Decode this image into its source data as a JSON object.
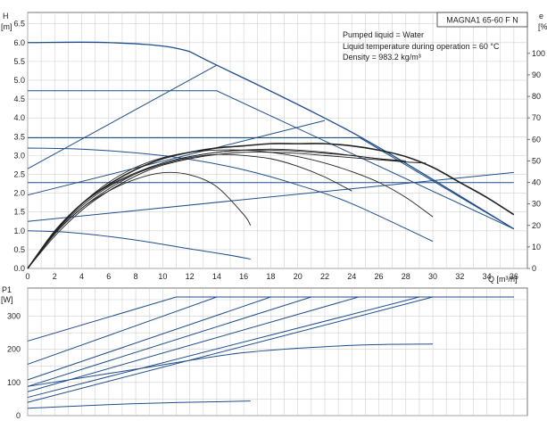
{
  "chart_data": [
    {
      "type": "line",
      "model_label": "MAGNA1 65-60 F N",
      "info_lines": [
        "Pumped liquid = Water",
        "Liquid temperature during operation = 60 °C",
        "Density = 983.2 kg/m³"
      ],
      "x_label": "Q [m³/h]",
      "y_label_top": "H",
      "y_label_bottom": "[m]",
      "y2_label_top": "e",
      "y2_label_bottom": "[%]",
      "xlim": [
        0,
        37
      ],
      "ylim": [
        0,
        6.8
      ],
      "y2lim": [
        0,
        119
      ],
      "x_ticks": [
        "0",
        "2",
        "4",
        "6",
        "8",
        "10",
        "12",
        "14",
        "16",
        "18",
        "20",
        "22",
        "24",
        "26",
        "28",
        "30",
        "32",
        "34",
        "36"
      ],
      "y_ticks": [
        "0.0",
        "0.5",
        "1.0",
        "1.5",
        "2.0",
        "2.5",
        "3.0",
        "3.5",
        "4.0",
        "4.5",
        "5.0",
        "5.5",
        "6.0",
        "6.5"
      ],
      "y2_ticks": [
        "0",
        "10",
        "20",
        "30",
        "40",
        "50",
        "60",
        "70",
        "80",
        "90",
        "100"
      ],
      "grid": true,
      "colors": {
        "curve": "#1f4e8c",
        "efficiency": "#222222"
      },
      "head_series": [
        {
          "x": [
            0,
            6,
            11,
            14,
            24.6,
            36
          ],
          "y": [
            6.0,
            6.0,
            5.85,
            5.4,
            3.5,
            1.05
          ]
        },
        {
          "x": [
            0,
            4,
            8,
            12,
            16,
            20,
            24,
            30
          ],
          "y": [
            3.2,
            3.17,
            3.07,
            2.9,
            2.62,
            2.22,
            1.72,
            0.72
          ]
        },
        {
          "x": [
            0,
            3,
            6,
            9,
            12,
            14.5,
            16.5
          ],
          "y": [
            1.0,
            0.96,
            0.85,
            0.7,
            0.52,
            0.38,
            0.25
          ]
        },
        {
          "x": [
            0,
            14,
            36
          ],
          "y": [
            4.72,
            4.72,
            1.05
          ]
        },
        {
          "x": [
            0,
            24.6,
            36
          ],
          "y": [
            3.47,
            3.47,
            1.05
          ]
        },
        {
          "x": [
            0,
            36
          ],
          "y": [
            2.28,
            2.28
          ]
        }
      ],
      "system_curves": [
        {
          "x": [
            0,
            14
          ],
          "y": [
            2.65,
            5.4
          ]
        },
        {
          "x": [
            0,
            22
          ],
          "y": [
            1.95,
            3.93
          ]
        },
        {
          "x": [
            0,
            36
          ],
          "y": [
            1.25,
            2.55
          ]
        }
      ],
      "efficiency_series": [
        {
          "x": [
            0,
            2,
            4,
            6,
            8,
            10,
            12,
            14,
            16,
            18,
            20,
            22,
            24,
            26,
            28,
            30,
            32,
            34,
            36
          ],
          "y": [
            0,
            17,
            30,
            39,
            46,
            51,
            54,
            56,
            57,
            58,
            58,
            58,
            57,
            55,
            52,
            47,
            40,
            33,
            25
          ]
        },
        {
          "x": [
            0,
            2,
            4,
            6,
            8,
            10,
            12,
            14,
            16,
            18,
            20,
            22,
            24,
            26,
            28,
            29.5
          ],
          "y": [
            0,
            16,
            28,
            37,
            44,
            49,
            52,
            54,
            55,
            55.5,
            55,
            54,
            52.5,
            51,
            49.5,
            49
          ]
        },
        {
          "x": [
            0,
            2,
            4,
            6,
            8,
            10,
            12,
            14,
            16,
            18,
            20,
            22,
            24,
            26,
            28
          ],
          "y": [
            0,
            15,
            27,
            36,
            43,
            48,
            51,
            53,
            54,
            54,
            53.5,
            52.5,
            51.5,
            50.5,
            49.5
          ]
        },
        {
          "x": [
            0,
            2,
            4,
            6,
            8,
            10,
            12,
            14,
            16,
            18,
            20,
            22,
            24,
            26,
            28
          ],
          "y": [
            0,
            17.5,
            30,
            38.5,
            44.5,
            49,
            52,
            54,
            55,
            55,
            54.5,
            53.5,
            52.5,
            51,
            50
          ]
        },
        {
          "x": [
            0,
            2,
            4,
            6,
            8,
            10,
            12,
            14,
            16,
            18,
            20,
            22,
            24,
            26,
            28,
            30
          ],
          "y": [
            0,
            17,
            30,
            40,
            47,
            51.5,
            54,
            55,
            55,
            54,
            52,
            49,
            45,
            40,
            33,
            24
          ]
        },
        {
          "x": [
            0,
            2,
            4,
            6,
            8,
            10,
            12,
            14,
            16,
            18,
            20,
            22,
            24
          ],
          "y": [
            0,
            16.5,
            29,
            38,
            44,
            48.5,
            51.5,
            53,
            52.5,
            51,
            47.5,
            42.5,
            36
          ]
        },
        {
          "x": [
            0,
            2,
            4,
            6,
            8,
            10,
            12,
            14,
            16,
            16.5
          ],
          "y": [
            0,
            16,
            28,
            36,
            41.5,
            44.5,
            43.5,
            38,
            25,
            20
          ]
        }
      ]
    },
    {
      "type": "line",
      "y_label_top": "P1",
      "y_label_bottom": "[W]",
      "xlim": [
        0,
        37
      ],
      "ylim": [
        0,
        385
      ],
      "y_ticks": [
        "0",
        "100",
        "200",
        "300"
      ],
      "grid": true,
      "colors": {
        "curve": "#1f4e8c"
      },
      "power_series": [
        {
          "x": [
            0,
            11,
            36
          ],
          "y": [
            225,
            358,
            358
          ]
        },
        {
          "x": [
            0,
            14,
            36
          ],
          "y": [
            155,
            358,
            358
          ]
        },
        {
          "x": [
            0,
            18,
            36
          ],
          "y": [
            108,
            358,
            358
          ]
        },
        {
          "x": [
            0,
            21,
            36
          ],
          "y": [
            88,
            358,
            358
          ]
        },
        {
          "x": [
            0,
            24.5,
            36
          ],
          "y": [
            72,
            358,
            358
          ]
        },
        {
          "x": [
            0,
            29,
            36
          ],
          "y": [
            55,
            358,
            358
          ]
        },
        {
          "x": [
            0,
            30,
            36
          ],
          "y": [
            40,
            358,
            358
          ]
        },
        {
          "x": [
            0,
            8,
            16,
            24,
            30
          ],
          "y": [
            88,
            140,
            190,
            212,
            216
          ]
        },
        {
          "x": [
            0,
            8,
            16.5
          ],
          "y": [
            22,
            36,
            44
          ]
        }
      ]
    }
  ]
}
